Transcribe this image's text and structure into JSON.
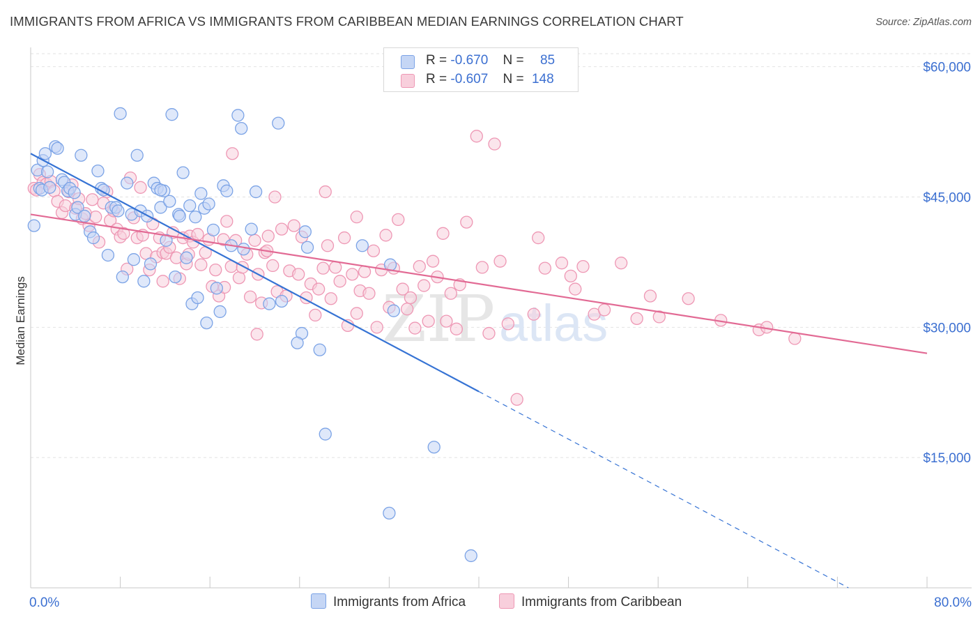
{
  "header": {
    "title": "IMMIGRANTS FROM AFRICA VS IMMIGRANTS FROM CARIBBEAN MEDIAN EARNINGS CORRELATION CHART",
    "source": "Source: ZipAtlas.com"
  },
  "watermark": {
    "zip": "ZIP",
    "atlas": "atlas"
  },
  "legend": {
    "africa": {
      "r_label": "R =",
      "r_value": "-0.670",
      "n_label": "N =",
      "n_value": "85"
    },
    "caribbean": {
      "r_label": "R =",
      "r_value": "-0.607",
      "n_label": "N =",
      "n_value": "148"
    }
  },
  "colors": {
    "africa": "#7ba3e6",
    "africa_fill": "#c5d6f5",
    "africa_line": "#3673d4",
    "caribbean": "#ee97b4",
    "caribbean_fill": "#f8cfdc",
    "caribbean_line": "#e26a94",
    "axis_text": "#3b6fd1",
    "grid": "#e2e2e2"
  },
  "chart_data": {
    "type": "scatter",
    "title": "IMMIGRANTS FROM AFRICA VS IMMIGRANTS FROM CARIBBEAN MEDIAN EARNINGS CORRELATION CHART",
    "xlabel": "",
    "ylabel": "Median Earnings",
    "xlim": [
      0,
      80
    ],
    "ylim": [
      0,
      61500
    ],
    "x_tick_labels": [
      "0.0%",
      "80.0%"
    ],
    "y_ticks": [
      15000,
      30000,
      45000,
      60000
    ],
    "y_tick_labels": [
      "$15,000",
      "$30,000",
      "$45,000",
      "$60,000"
    ],
    "grid": true,
    "legend_position": "top-center",
    "series": [
      {
        "name": "Immigrants from Africa",
        "r": -0.67,
        "n": 85,
        "trend": {
          "x0": 0,
          "y0": 50000,
          "x_solid_end": 40,
          "slope": -685
        },
        "points": [
          [
            0.3,
            41700
          ],
          [
            0.6,
            48100
          ],
          [
            0.8,
            46000
          ],
          [
            1.0,
            45800
          ],
          [
            1.1,
            49200
          ],
          [
            1.3,
            50000
          ],
          [
            1.5,
            47900
          ],
          [
            1.7,
            46100
          ],
          [
            2.2,
            50800
          ],
          [
            2.4,
            50600
          ],
          [
            2.8,
            47000
          ],
          [
            3.0,
            46700
          ],
          [
            3.3,
            45700
          ],
          [
            3.5,
            46000
          ],
          [
            4.0,
            43000
          ],
          [
            4.2,
            43800
          ],
          [
            4.5,
            49800
          ],
          [
            4.8,
            42800
          ],
          [
            5.3,
            41000
          ],
          [
            5.6,
            40300
          ],
          [
            6.0,
            48000
          ],
          [
            6.3,
            46000
          ],
          [
            6.5,
            45800
          ],
          [
            6.9,
            38300
          ],
          [
            7.2,
            43800
          ],
          [
            7.6,
            43800
          ],
          [
            7.8,
            43400
          ],
          [
            8.0,
            54600
          ],
          [
            8.2,
            35800
          ],
          [
            8.6,
            46600
          ],
          [
            9.0,
            43000
          ],
          [
            9.2,
            37800
          ],
          [
            9.5,
            49800
          ],
          [
            9.8,
            43400
          ],
          [
            10.1,
            35300
          ],
          [
            10.4,
            42800
          ],
          [
            10.7,
            37300
          ],
          [
            11.0,
            46600
          ],
          [
            11.3,
            46000
          ],
          [
            11.6,
            43800
          ],
          [
            11.9,
            45700
          ],
          [
            12.1,
            40000
          ],
          [
            12.4,
            44500
          ],
          [
            12.6,
            54500
          ],
          [
            12.9,
            35800
          ],
          [
            13.2,
            43000
          ],
          [
            13.6,
            47800
          ],
          [
            13.9,
            38000
          ],
          [
            14.2,
            44000
          ],
          [
            14.4,
            32700
          ],
          [
            14.7,
            42700
          ],
          [
            14.9,
            33400
          ],
          [
            15.2,
            45400
          ],
          [
            15.5,
            43700
          ],
          [
            15.7,
            30500
          ],
          [
            15.9,
            44200
          ],
          [
            16.3,
            41200
          ],
          [
            16.6,
            34500
          ],
          [
            16.9,
            31800
          ],
          [
            17.2,
            46300
          ],
          [
            17.5,
            45700
          ],
          [
            17.9,
            39400
          ],
          [
            18.5,
            54400
          ],
          [
            18.8,
            52900
          ],
          [
            19.0,
            39000
          ],
          [
            19.7,
            41300
          ],
          [
            20.1,
            45600
          ],
          [
            21.3,
            32700
          ],
          [
            22.4,
            33000
          ],
          [
            22.1,
            53500
          ],
          [
            24.5,
            41000
          ],
          [
            24.2,
            29300
          ],
          [
            23.8,
            28200
          ],
          [
            24.7,
            39200
          ],
          [
            25.8,
            27400
          ],
          [
            26.3,
            17700
          ],
          [
            29.6,
            39400
          ],
          [
            32.1,
            37200
          ],
          [
            32.4,
            31900
          ],
          [
            32.0,
            8600
          ],
          [
            36.0,
            16200
          ],
          [
            39.3,
            3700
          ],
          [
            11.6,
            45800
          ],
          [
            3.9,
            45500
          ],
          [
            13.3,
            42800
          ]
        ]
      },
      {
        "name": "Immigrants from Caribbean",
        "r": -0.607,
        "n": 148,
        "trend": {
          "x0": 0,
          "y0": 43000,
          "x1": 80,
          "y1": 27000
        },
        "points": [
          [
            0.3,
            46000
          ],
          [
            0.5,
            45800
          ],
          [
            0.8,
            47600
          ],
          [
            1.1,
            46700
          ],
          [
            1.4,
            46500
          ],
          [
            1.8,
            46800
          ],
          [
            2.1,
            45700
          ],
          [
            2.4,
            44500
          ],
          [
            2.8,
            43200
          ],
          [
            3.1,
            44000
          ],
          [
            3.4,
            45600
          ],
          [
            3.7,
            46400
          ],
          [
            4.0,
            43700
          ],
          [
            4.3,
            44800
          ],
          [
            4.6,
            42500
          ],
          [
            4.9,
            43100
          ],
          [
            5.2,
            41700
          ],
          [
            5.5,
            44700
          ],
          [
            5.8,
            42700
          ],
          [
            6.1,
            39800
          ],
          [
            6.5,
            44300
          ],
          [
            6.8,
            45600
          ],
          [
            7.1,
            42300
          ],
          [
            7.4,
            43400
          ],
          [
            7.7,
            41300
          ],
          [
            8.0,
            40400
          ],
          [
            8.3,
            40800
          ],
          [
            8.6,
            36700
          ],
          [
            8.9,
            47200
          ],
          [
            9.2,
            42600
          ],
          [
            9.5,
            40300
          ],
          [
            9.8,
            46100
          ],
          [
            10.0,
            40600
          ],
          [
            10.3,
            38500
          ],
          [
            10.6,
            36600
          ],
          [
            10.9,
            41900
          ],
          [
            11.2,
            38100
          ],
          [
            11.5,
            40300
          ],
          [
            11.8,
            38600
          ],
          [
            12.1,
            38500
          ],
          [
            12.4,
            39200
          ],
          [
            12.7,
            40900
          ],
          [
            13.0,
            38000
          ],
          [
            13.3,
            35600
          ],
          [
            13.6,
            40300
          ],
          [
            13.9,
            37300
          ],
          [
            14.2,
            40500
          ],
          [
            14.5,
            39800
          ],
          [
            14.9,
            40700
          ],
          [
            15.2,
            37200
          ],
          [
            15.6,
            38600
          ],
          [
            15.9,
            40100
          ],
          [
            16.2,
            34700
          ],
          [
            16.5,
            36600
          ],
          [
            16.8,
            33600
          ],
          [
            17.2,
            40100
          ],
          [
            17.5,
            42200
          ],
          [
            17.9,
            37000
          ],
          [
            18.3,
            40000
          ],
          [
            18.6,
            35700
          ],
          [
            18.9,
            36900
          ],
          [
            19.3,
            38400
          ],
          [
            19.6,
            33500
          ],
          [
            20.0,
            40000
          ],
          [
            20.3,
            36100
          ],
          [
            20.6,
            32800
          ],
          [
            20.9,
            38600
          ],
          [
            21.2,
            40500
          ],
          [
            21.6,
            37100
          ],
          [
            22.0,
            34100
          ],
          [
            22.4,
            41300
          ],
          [
            22.8,
            33600
          ],
          [
            23.1,
            36500
          ],
          [
            23.5,
            41700
          ],
          [
            23.9,
            36100
          ],
          [
            24.2,
            40400
          ],
          [
            24.6,
            33400
          ],
          [
            25.0,
            35000
          ],
          [
            25.4,
            31400
          ],
          [
            25.7,
            34400
          ],
          [
            26.1,
            36800
          ],
          [
            26.5,
            39400
          ],
          [
            26.8,
            33300
          ],
          [
            27.2,
            36900
          ],
          [
            27.6,
            35300
          ],
          [
            28.0,
            40300
          ],
          [
            28.3,
            30200
          ],
          [
            28.7,
            36100
          ],
          [
            29.1,
            31600
          ],
          [
            29.4,
            34200
          ],
          [
            29.8,
            36400
          ],
          [
            30.2,
            33900
          ],
          [
            30.6,
            38800
          ],
          [
            30.9,
            30000
          ],
          [
            31.3,
            36600
          ],
          [
            31.7,
            40600
          ],
          [
            32.0,
            32300
          ],
          [
            32.4,
            36800
          ],
          [
            32.8,
            42400
          ],
          [
            33.2,
            34400
          ],
          [
            33.6,
            32100
          ],
          [
            33.9,
            33400
          ],
          [
            34.3,
            29900
          ],
          [
            34.7,
            37000
          ],
          [
            35.1,
            34800
          ],
          [
            35.5,
            30700
          ],
          [
            35.9,
            37600
          ],
          [
            36.3,
            35800
          ],
          [
            36.8,
            40800
          ],
          [
            37.1,
            30700
          ],
          [
            37.5,
            33900
          ],
          [
            38.0,
            29800
          ],
          [
            38.3,
            34900
          ],
          [
            38.9,
            42100
          ],
          [
            39.8,
            52000
          ],
          [
            40.3,
            36900
          ],
          [
            40.9,
            29300
          ],
          [
            41.4,
            51100
          ],
          [
            41.9,
            37600
          ],
          [
            42.6,
            30400
          ],
          [
            43.4,
            21700
          ],
          [
            44.9,
            31500
          ],
          [
            45.3,
            40300
          ],
          [
            45.9,
            36800
          ],
          [
            47.4,
            37400
          ],
          [
            48.2,
            35900
          ],
          [
            48.6,
            34400
          ],
          [
            49.3,
            37000
          ],
          [
            50.3,
            31500
          ],
          [
            51.2,
            32000
          ],
          [
            52.7,
            37400
          ],
          [
            54.1,
            31000
          ],
          [
            55.3,
            33600
          ],
          [
            56.1,
            31200
          ],
          [
            58.7,
            33300
          ],
          [
            61.6,
            30800
          ],
          [
            65.0,
            29700
          ],
          [
            65.7,
            30000
          ],
          [
            68.2,
            28700
          ],
          [
            18.0,
            50000
          ],
          [
            21.8,
            45000
          ],
          [
            26.3,
            45600
          ],
          [
            29.1,
            42700
          ],
          [
            21.1,
            38800
          ],
          [
            14.1,
            38400
          ],
          [
            11.8,
            35300
          ],
          [
            17.3,
            34600
          ],
          [
            20.2,
            29200
          ]
        ]
      }
    ]
  },
  "bottom_legend": {
    "africa_label": "Immigrants from Africa",
    "caribbean_label": "Immigrants from Caribbean"
  }
}
